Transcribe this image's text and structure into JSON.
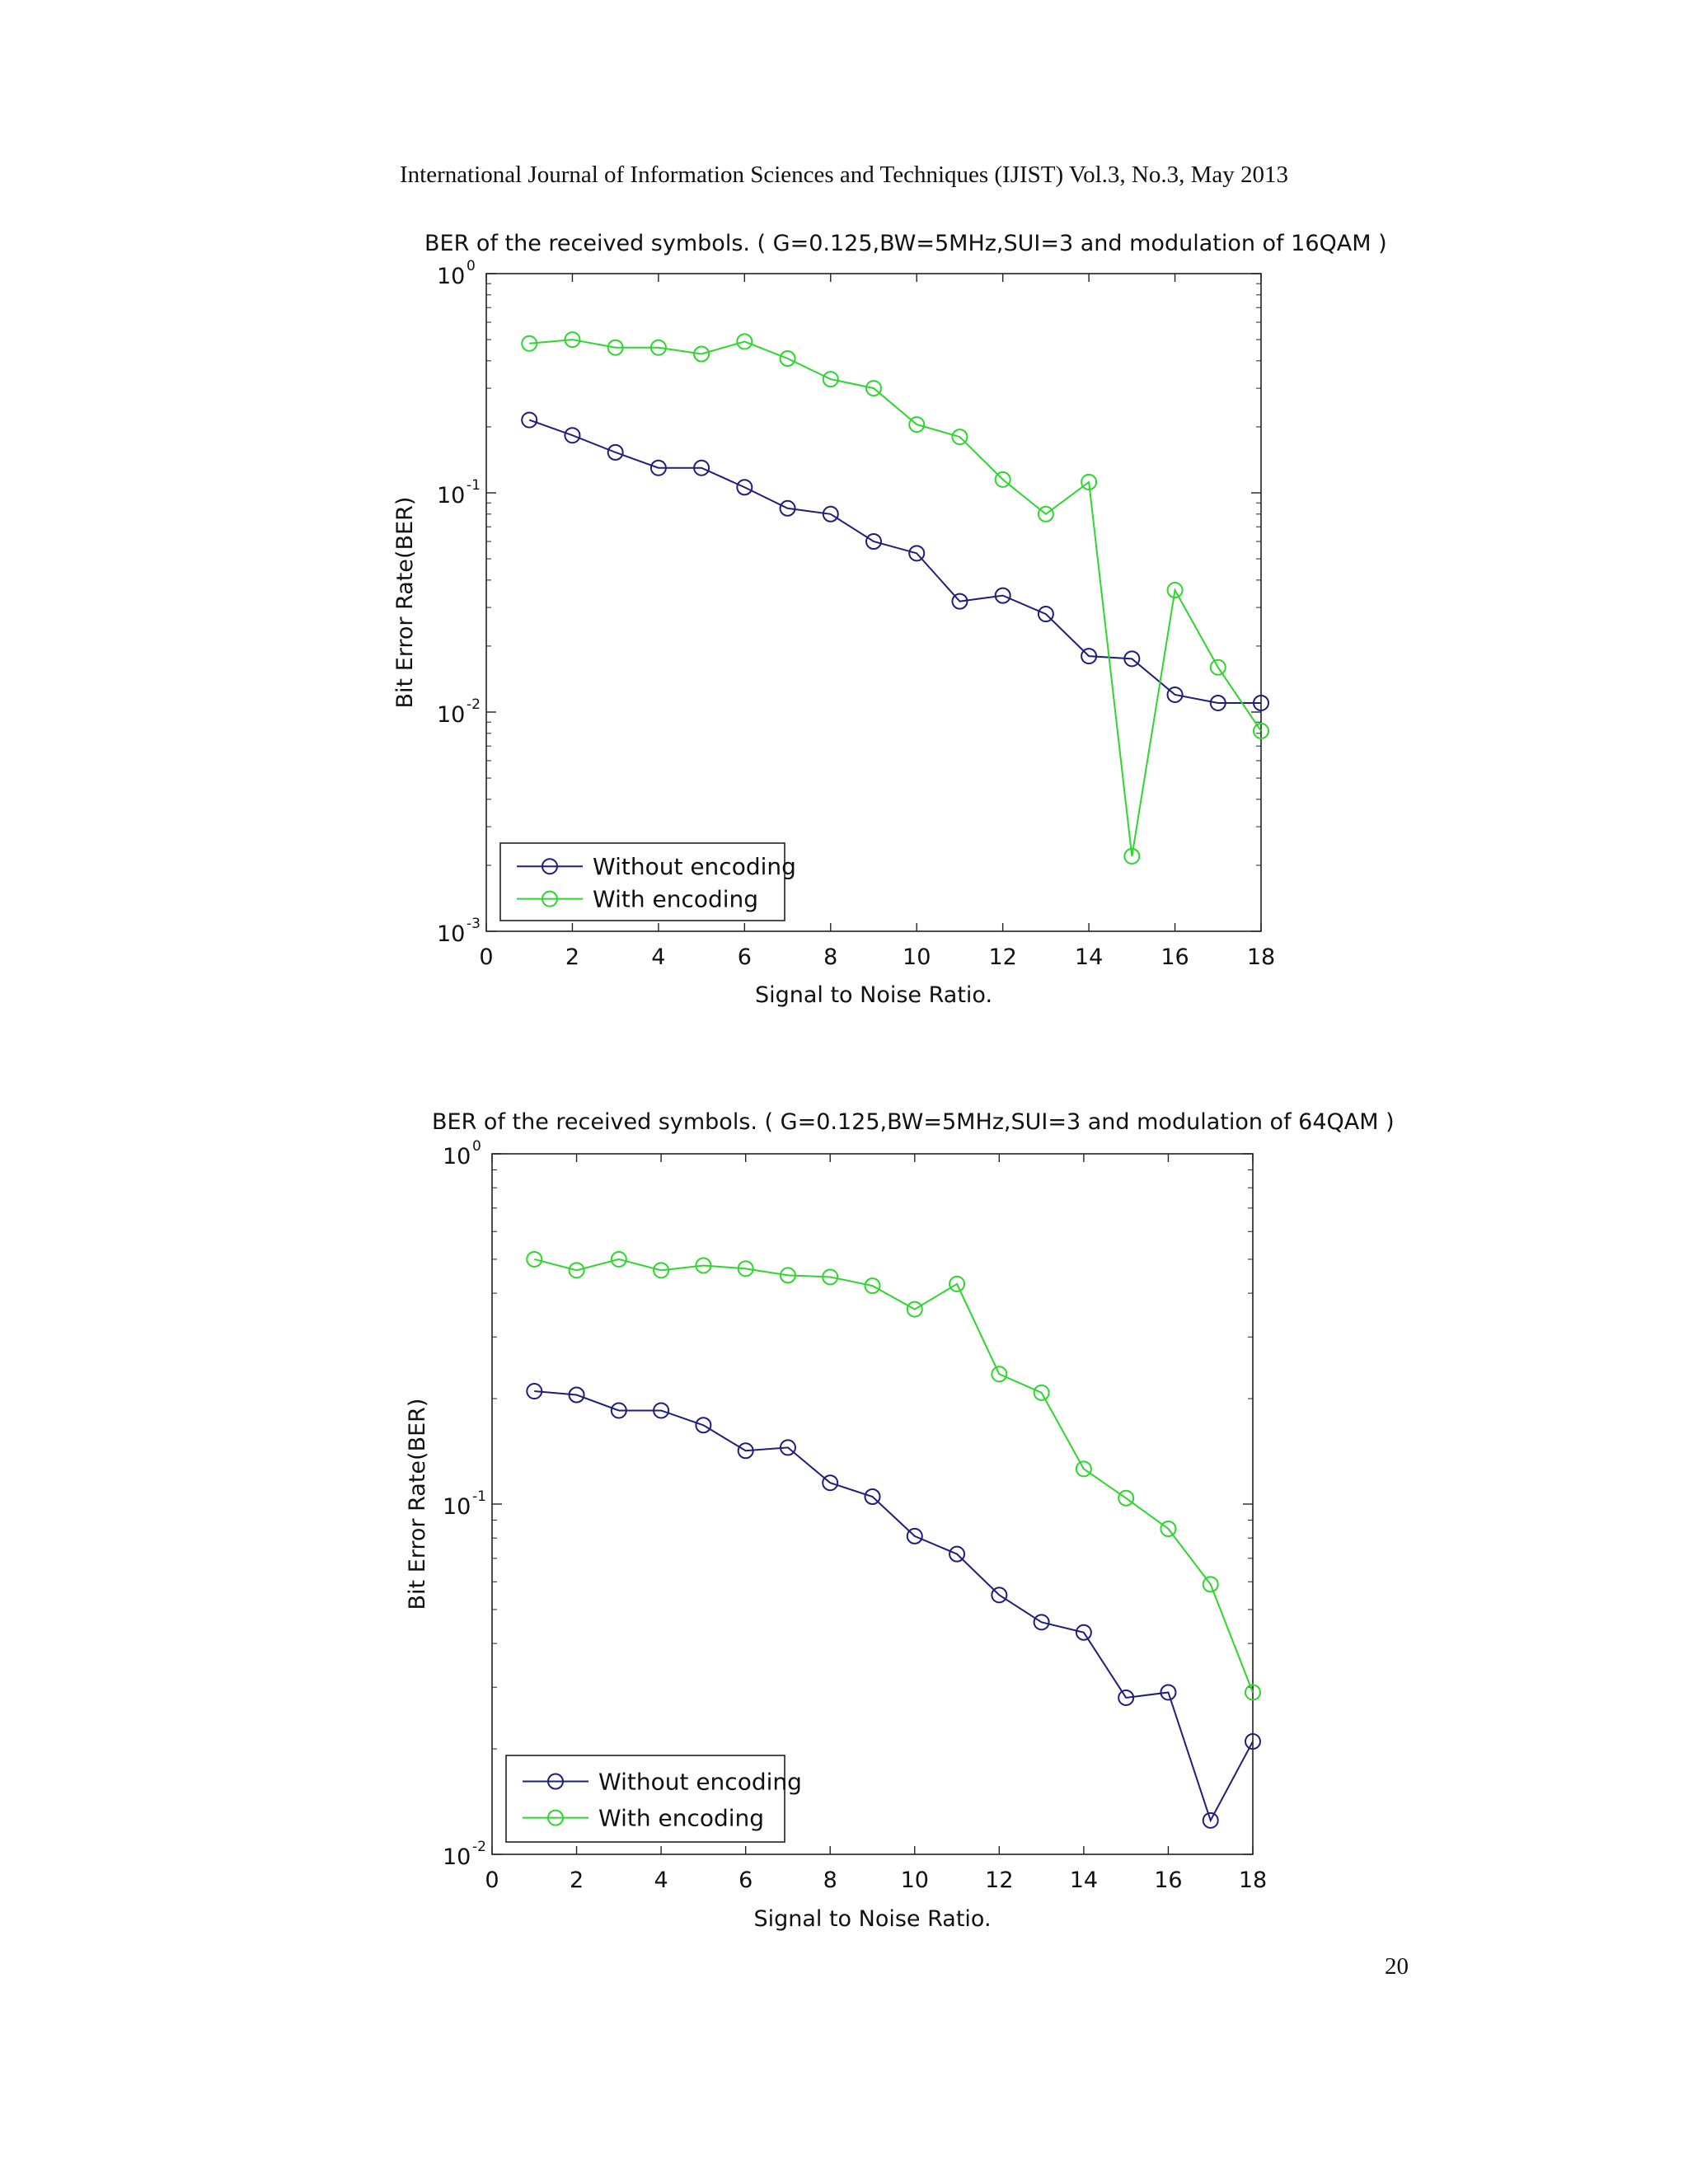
{
  "page": {
    "header": "International Journal of Information Sciences and Techniques (IJIST) Vol.3, No.3, May 2013",
    "page_number": "20"
  },
  "colors": {
    "without": "#1f1f7a",
    "with": "#2ed62e"
  },
  "chart_data": [
    {
      "type": "line",
      "title": "BER of the received symbols. ( G=0.125,BW=5MHz,SUI=3 and modulation of 16QAM )",
      "xlabel": "Signal to Noise Ratio.",
      "ylabel": "Bit Error Rate(BER)",
      "xlim": [
        0,
        18
      ],
      "ylim": [
        0.001,
        1
      ],
      "yscale": "log",
      "xticks": [
        "0",
        "2",
        "4",
        "6",
        "8",
        "10",
        "12",
        "14",
        "16",
        "18"
      ],
      "yticks": [
        {
          "base": "10",
          "exp": "0"
        },
        {
          "base": "10",
          "exp": "-1"
        },
        {
          "base": "10",
          "exp": "-2"
        },
        {
          "base": "10",
          "exp": "-3"
        }
      ],
      "legend_position": "bottom-left",
      "x": [
        1,
        2,
        3,
        4,
        5,
        6,
        7,
        8,
        9,
        10,
        11,
        12,
        13,
        14,
        15,
        16,
        17,
        18
      ],
      "series": [
        {
          "name": "Without encoding",
          "color": "#1f1f7a",
          "marker": "circle",
          "values": [
            0.215,
            0.183,
            0.153,
            0.13,
            0.13,
            0.106,
            0.085,
            0.08,
            0.06,
            0.053,
            0.032,
            0.034,
            0.028,
            0.018,
            0.0175,
            0.012,
            0.011,
            0.011
          ]
        },
        {
          "name": "With encoding",
          "color": "#2ed62e",
          "marker": "circle",
          "values": [
            0.48,
            0.5,
            0.46,
            0.46,
            0.43,
            0.49,
            0.41,
            0.33,
            0.3,
            0.205,
            0.18,
            0.115,
            0.08,
            0.112,
            0.0022,
            0.036,
            0.016,
            0.0082
          ]
        }
      ]
    },
    {
      "type": "line",
      "title": "BER of the received symbols. ( G=0.125,BW=5MHz,SUI=3 and modulation of 64QAM )",
      "xlabel": "Signal to Noise Ratio.",
      "ylabel": "Bit Error Rate(BER)",
      "xlim": [
        0,
        18
      ],
      "ylim": [
        0.01,
        1
      ],
      "yscale": "log",
      "xticks": [
        "0",
        "2",
        "4",
        "6",
        "8",
        "10",
        "12",
        "14",
        "16",
        "18"
      ],
      "yticks": [
        {
          "base": "10",
          "exp": "0"
        },
        {
          "base": "10",
          "exp": "-1"
        },
        {
          "base": "10",
          "exp": "-2"
        }
      ],
      "legend_position": "bottom-left",
      "x": [
        1,
        2,
        3,
        4,
        5,
        6,
        7,
        8,
        9,
        10,
        11,
        12,
        13,
        14,
        15,
        16,
        17,
        18
      ],
      "series": [
        {
          "name": "Without encoding",
          "color": "#1f1f7a",
          "marker": "circle",
          "values": [
            0.21,
            0.205,
            0.185,
            0.185,
            0.168,
            0.142,
            0.145,
            0.115,
            0.105,
            0.081,
            0.072,
            0.055,
            0.046,
            0.043,
            0.028,
            0.029,
            0.0125,
            0.021
          ]
        },
        {
          "name": "With encoding",
          "color": "#2ed62e",
          "marker": "circle",
          "values": [
            0.5,
            0.465,
            0.5,
            0.465,
            0.48,
            0.47,
            0.45,
            0.445,
            0.42,
            0.36,
            0.425,
            0.235,
            0.208,
            0.126,
            0.104,
            0.085,
            0.059,
            0.029
          ]
        }
      ]
    }
  ]
}
